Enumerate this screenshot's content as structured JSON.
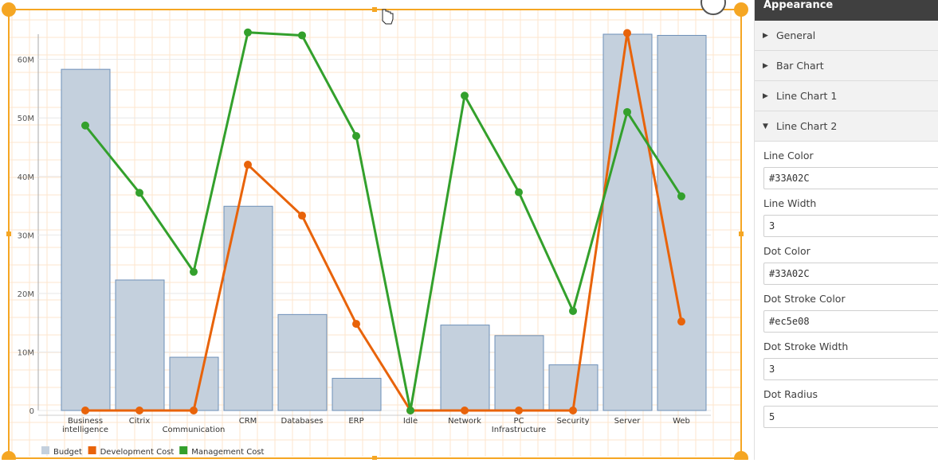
{
  "chart_data": {
    "type": "bar+line",
    "categories": [
      "Business intelligence",
      "Citrix",
      "Communication",
      "CRM",
      "Databases",
      "ERP",
      "Idle",
      "Network",
      "PC Infrastructure",
      "Security",
      "Server",
      "Web"
    ],
    "category_labels": [
      [
        "Business",
        "intelligence"
      ],
      [
        "Citrix"
      ],
      [
        "",
        "Communication"
      ],
      [
        "CRM"
      ],
      [
        "Databases"
      ],
      [
        "ERP"
      ],
      [
        "Idle"
      ],
      [
        "Network"
      ],
      [
        "PC",
        "Infrastructure"
      ],
      [
        "Security"
      ],
      [
        "Server"
      ],
      [
        "Web"
      ]
    ],
    "yticks": [
      0,
      10,
      20,
      30,
      40,
      50,
      60
    ],
    "ytick_labels": [
      "0",
      "10M",
      "20M",
      "30M",
      "40M",
      "50M",
      "60M"
    ],
    "ylim": [
      0,
      65
    ],
    "series": [
      {
        "name": "Budget",
        "type": "bar",
        "color": "#c4d0dd",
        "stroke": "#6d8fb8",
        "values": [
          58.3,
          22.3,
          9.1,
          34.9,
          16.4,
          5.5,
          0,
          14.6,
          12.8,
          7.8,
          64.3,
          64.1
        ]
      },
      {
        "name": "Development Cost",
        "type": "line",
        "color": "#e8630a",
        "values": [
          0,
          0,
          0,
          42.0,
          33.3,
          14.8,
          0,
          0,
          0,
          0,
          64.5,
          15.2
        ]
      },
      {
        "name": "Management Cost",
        "type": "line",
        "color": "#33a02c",
        "values": [
          48.7,
          37.2,
          23.7,
          64.6,
          64.1,
          46.9,
          0,
          53.8,
          37.3,
          17.0,
          51.0,
          36.6
        ]
      }
    ],
    "legend": [
      "Budget",
      "Development Cost",
      "Management Cost"
    ],
    "legend_position": "bottom-left",
    "grid": true
  },
  "panel": {
    "title": "Appearance",
    "sections": [
      {
        "label": "General",
        "expanded": false
      },
      {
        "label": "Bar Chart",
        "expanded": false
      },
      {
        "label": "Line Chart 1",
        "expanded": false
      },
      {
        "label": "Line Chart 2",
        "expanded": true
      }
    ],
    "properties": [
      {
        "label": "Line Color",
        "value": "#33A02C"
      },
      {
        "label": "Line Width",
        "value": "3"
      },
      {
        "label": "Dot Color",
        "value": "#33A02C"
      },
      {
        "label": "Dot Stroke Color",
        "value": "#ec5e08"
      },
      {
        "label": "Dot Stroke Width",
        "value": "3"
      },
      {
        "label": "Dot Radius",
        "value": "5"
      }
    ]
  },
  "colors": {
    "selection": "#f5a623",
    "grid": "#fde6cc"
  }
}
